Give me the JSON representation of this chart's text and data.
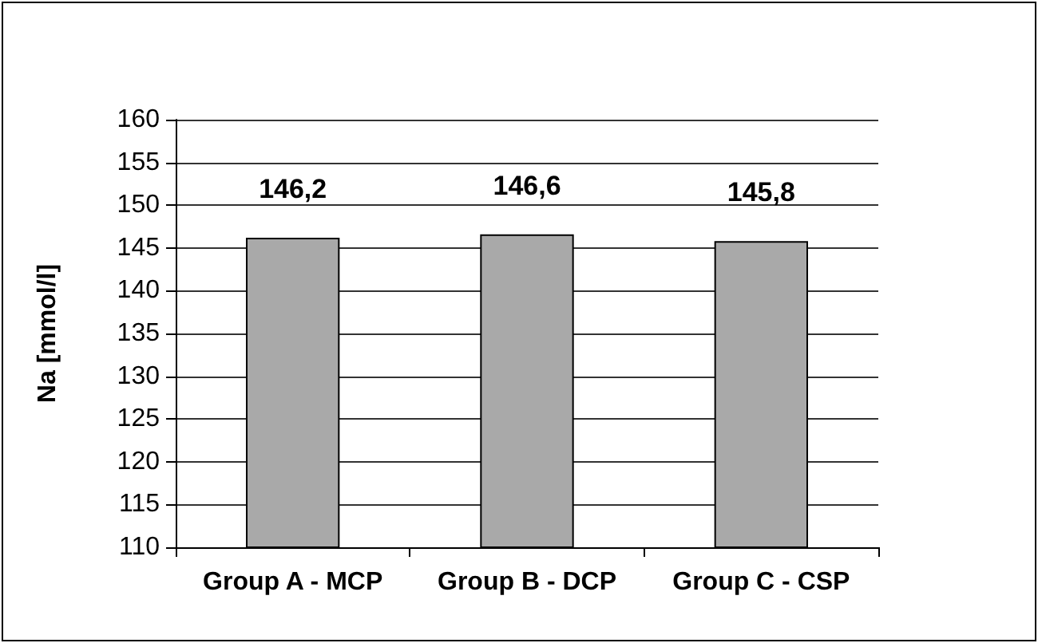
{
  "chart_data": {
    "type": "bar",
    "ylabel": "Na [mmol/l]",
    "categories": [
      "Group A - MCP",
      "Group B - DCP",
      "Group C - CSP"
    ],
    "values": [
      146.2,
      146.6,
      145.8
    ],
    "color": "#a9a9a9",
    "value_labels": [
      "146,2",
      "146,6",
      "145,8"
    ],
    "ylim": [
      110,
      160
    ],
    "yticks": [
      110,
      115,
      120,
      125,
      130,
      135,
      140,
      145,
      150,
      155,
      160
    ],
    "grid": "y"
  }
}
